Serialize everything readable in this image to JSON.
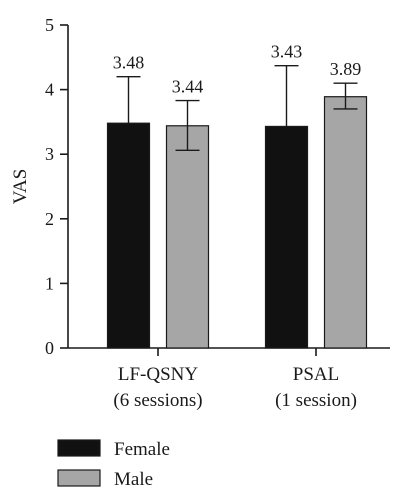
{
  "chart_data": {
    "type": "bar",
    "ylabel": "VAS",
    "ylim": [
      0,
      5
    ],
    "yticks": [
      0,
      1,
      2,
      3,
      4,
      5
    ],
    "categories": [
      [
        "LF-QSNY",
        "(6 sessions)"
      ],
      [
        "PSAL",
        "(1 session)"
      ]
    ],
    "series": [
      {
        "name": "Female",
        "color": "#111111",
        "values": [
          3.48,
          3.43
        ],
        "labels": [
          "3.48",
          "3.43"
        ],
        "error_upper": [
          4.2,
          4.37
        ],
        "error_lower": [
          null,
          null
        ]
      },
      {
        "name": "Male",
        "color": "#a6a6a6",
        "values": [
          3.44,
          3.89
        ],
        "labels": [
          "3.44",
          "3.89"
        ],
        "error_upper": [
          3.83,
          4.1
        ],
        "error_lower": [
          3.06,
          3.7
        ]
      }
    ],
    "legend_position": "bottom-left",
    "grid": false
  }
}
